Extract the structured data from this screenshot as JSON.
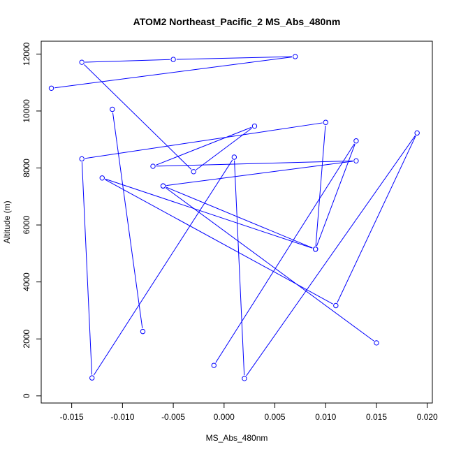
{
  "chart_data": {
    "type": "line",
    "title": "ATOM2 Northeast_Pacific_2 MS_Abs_480nm",
    "xlabel": "MS_Abs_480nm",
    "ylabel": "Altitude (m)",
    "xlim": [
      -0.018,
      0.0205
    ],
    "ylim": [
      -250,
      12450
    ],
    "x_ticks": [
      -0.015,
      -0.01,
      -0.005,
      0.0,
      0.005,
      0.01,
      0.015,
      0.02
    ],
    "x_tick_labels": [
      "-0.015",
      "-0.010",
      "-0.005",
      "0.000",
      "0.005",
      "0.010",
      "0.015",
      "0.020"
    ],
    "y_ticks": [
      0,
      2000,
      4000,
      6000,
      8000,
      10000,
      12000
    ],
    "y_tick_labels": [
      "0",
      "2000",
      "4000",
      "6000",
      "8000",
      "10000",
      "12000"
    ],
    "grid": false,
    "color": "#0000ff",
    "series": [
      {
        "x": [
          -0.001,
          0.013,
          0.009,
          0.01,
          -0.014,
          -0.013,
          0.001,
          0.002,
          0.019,
          0.011,
          -0.012,
          0.009,
          -0.006,
          0.013,
          -0.007,
          0.003,
          -0.003,
          -0.014,
          -0.005,
          0.007,
          -0.017
        ],
        "y": [
          1070,
          8950,
          5150,
          9600,
          8320,
          630,
          8380,
          610,
          9230,
          3170,
          7650,
          5150,
          7370,
          8250,
          8060,
          9470,
          7870,
          11710,
          11810,
          11910,
          10800
        ]
      },
      {
        "x": [
          -0.008,
          -0.011
        ],
        "y": [
          2260,
          10060
        ]
      },
      {
        "x": [
          0.015,
          -0.006
        ],
        "y": [
          1860,
          7370
        ]
      }
    ]
  }
}
